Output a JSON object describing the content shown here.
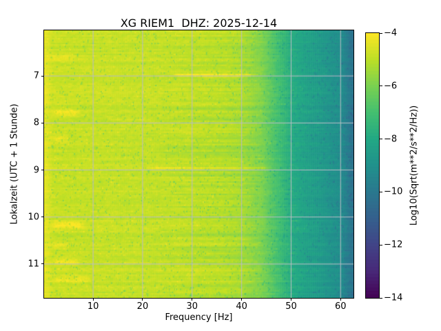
{
  "chart_data": {
    "type": "heatmap",
    "subtype": "spectrogram",
    "title": "XG RIEM1  DHZ: 2025-12-14",
    "xlabel": "Frequency [Hz]",
    "ylabel": "Lokalzeit (UTC + 1 Stunde)",
    "colorbar_label": "Log10(Sqrt(m**2/s**2/Hz))",
    "x_range_hz": [
      0.1,
      62.6
    ],
    "y_range_hours": [
      6.03,
      11.72
    ],
    "y_axis_direction": "time-increases-downward",
    "grid_on": true,
    "x_ticks": [
      {
        "value": 10,
        "label": "10"
      },
      {
        "value": 20,
        "label": "20"
      },
      {
        "value": 30,
        "label": "30"
      },
      {
        "value": 40,
        "label": "40"
      },
      {
        "value": 50,
        "label": "50"
      },
      {
        "value": 60,
        "label": "60"
      }
    ],
    "y_ticks": [
      {
        "value": 7,
        "label": "7"
      },
      {
        "value": 8,
        "label": "8"
      },
      {
        "value": 9,
        "label": "9"
      },
      {
        "value": 10,
        "label": "10"
      },
      {
        "value": 11,
        "label": "11"
      }
    ],
    "colorbar": {
      "orientation": "vertical",
      "range": [
        -14,
        -4
      ],
      "ticks": [
        {
          "value": -4,
          "label": "−4"
        },
        {
          "value": -6,
          "label": "−6"
        },
        {
          "value": -8,
          "label": "−8"
        },
        {
          "value": -10,
          "label": "−10"
        },
        {
          "value": -12,
          "label": "−12"
        },
        {
          "value": -14,
          "label": "−14"
        }
      ]
    },
    "colormap": {
      "name": "viridis",
      "stops": [
        [
          0.0,
          "#440154"
        ],
        [
          0.1,
          "#482878"
        ],
        [
          0.2,
          "#414487"
        ],
        [
          0.3,
          "#35608d"
        ],
        [
          0.4,
          "#2a788e"
        ],
        [
          0.5,
          "#21918c"
        ],
        [
          0.6,
          "#22a884"
        ],
        [
          0.7,
          "#44bf70"
        ],
        [
          0.8,
          "#7ad151"
        ],
        [
          0.9,
          "#bddf26"
        ],
        [
          1.0,
          "#fde725"
        ]
      ]
    },
    "background_profile_db": [
      [
        0.1,
        -4.35
      ],
      [
        0.9,
        -4.5
      ],
      [
        1.8,
        -4.8
      ],
      [
        5,
        -4.85
      ],
      [
        12,
        -4.85
      ],
      [
        22,
        -4.9
      ],
      [
        30,
        -5.0
      ],
      [
        36,
        -5.1
      ],
      [
        40,
        -5.3
      ],
      [
        44,
        -5.9
      ],
      [
        47,
        -6.9
      ],
      [
        50,
        -7.8
      ],
      [
        53,
        -8.3
      ],
      [
        56,
        -8.6
      ],
      [
        58,
        -8.9
      ],
      [
        60,
        -9.1
      ],
      [
        61,
        -9.6
      ],
      [
        62.6,
        -10.3
      ]
    ],
    "features": {
      "harmonic_lines": [
        {
          "time": 6.98,
          "f_start": 25,
          "f_end": 44,
          "boost": 1.2
        },
        {
          "time": 7.02,
          "f_start": 30,
          "f_end": 42,
          "boost": 0.5
        },
        {
          "time": 7.93,
          "f_start": 12,
          "f_end": 23,
          "boost": 0.35
        },
        {
          "time": 8.95,
          "f_start": 20,
          "f_end": 47,
          "boost": 0.65
        }
      ],
      "low_freq_bursts": [
        {
          "time": 6.62,
          "f_start": 1.5,
          "f_end": 7,
          "boost": 0.5
        },
        {
          "time": 7.78,
          "f_start": 2,
          "f_end": 8,
          "boost": 0.8
        },
        {
          "time": 8.33,
          "f_start": 1.5,
          "f_end": 6,
          "boost": 0.5
        },
        {
          "time": 10.17,
          "f_start": 2,
          "f_end": 9,
          "boost": 0.85
        },
        {
          "time": 10.6,
          "f_start": 1.5,
          "f_end": 6,
          "boost": 0.45
        },
        {
          "time": 10.95,
          "f_start": 2,
          "f_end": 8,
          "boost": 0.7
        },
        {
          "time": 11.33,
          "f_start": 2,
          "f_end": 10,
          "boost": 0.55
        }
      ]
    },
    "noise": {
      "seed": 20251214,
      "cell_sigma": 0.3,
      "row_sigma": 0.16,
      "streak_band": [
        22,
        46
      ],
      "streak_extra": 0.26,
      "dark_speckle_prob": 0.045,
      "bright_speckle_prob": 0.015
    },
    "grid_color": "#babcc6"
  }
}
